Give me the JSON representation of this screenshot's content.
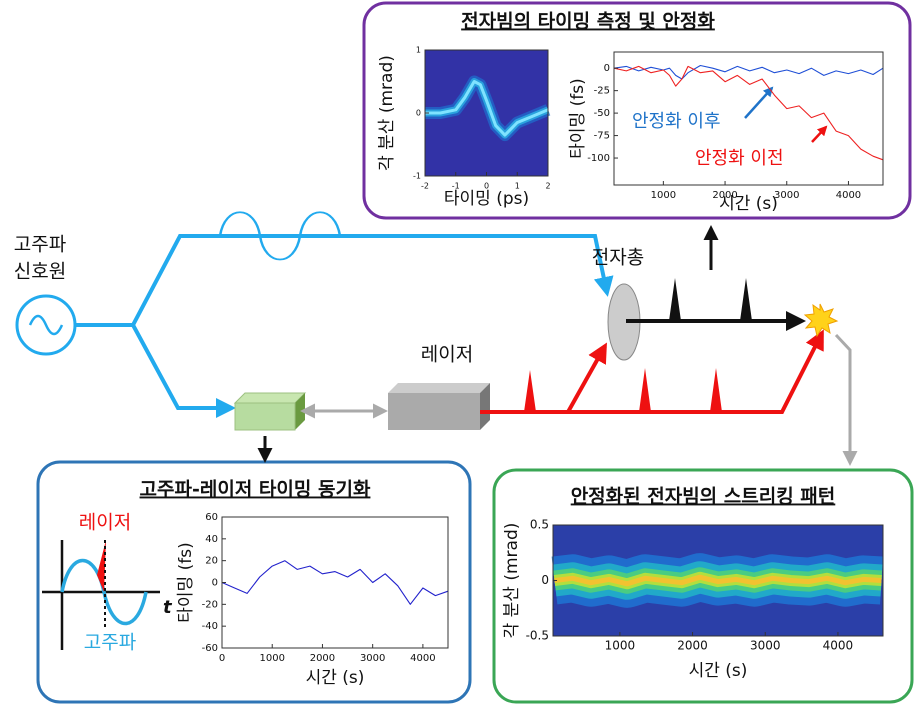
{
  "top_panel": {
    "title": "전자빔의 타이밍 측정 및 안정화",
    "left_chart": {
      "type": "heatmap",
      "xlabel": "타이밍 (ps)",
      "ylabel": "각 분산 (mrad)",
      "background": "#3232a6",
      "xlim": [
        -2,
        2
      ],
      "ylim": [
        -1,
        1
      ],
      "xticks": [
        -2,
        -1,
        0,
        1,
        2
      ],
      "yticks": [
        -1,
        0,
        1
      ],
      "x": [
        -2,
        -1.5,
        -1,
        -0.7,
        -0.4,
        -0.2,
        0,
        0.3,
        0.6,
        1,
        1.5,
        2
      ],
      "series": [
        {
          "color": "#7fe3ff",
          "values": [
            0,
            0,
            0.05,
            0.25,
            0.5,
            0.45,
            0.2,
            -0.2,
            -0.35,
            -0.15,
            -0.05,
            0.05
          ]
        }
      ]
    },
    "right_chart": {
      "type": "line",
      "xlabel": "시간 (s)",
      "ylabel": "타이밍 (fs)",
      "xlim": [
        200,
        4560
      ],
      "ylim": [
        -130,
        18
      ],
      "xticks": [
        1000,
        2000,
        3000,
        4000
      ],
      "yticks": [
        0,
        -25,
        -50,
        -75,
        -100
      ],
      "x": [
        200,
        400,
        600,
        800,
        1000,
        1100,
        1200,
        1300,
        1400,
        1600,
        1800,
        2000,
        2200,
        2400,
        2600,
        2800,
        3000,
        3200,
        3400,
        3600,
        3800,
        4000,
        4200,
        4400,
        4560
      ],
      "series": [
        {
          "name": "안정화 이후",
          "color": "#1f4fd6",
          "values": [
            0,
            2,
            -3,
            1,
            -2,
            0,
            -8,
            -12,
            -5,
            3,
            0,
            -4,
            2,
            -3,
            1,
            -5,
            -2,
            -6,
            0,
            -8,
            -3,
            -6,
            -2,
            -7,
            0
          ]
        },
        {
          "name": "안정화 이전",
          "color": "#ee2222",
          "values": [
            0,
            -3,
            2,
            -5,
            -2,
            -8,
            -20,
            -12,
            2,
            -5,
            -3,
            -15,
            -8,
            -18,
            -12,
            -30,
            -45,
            -42,
            -55,
            -50,
            -70,
            -75,
            -90,
            -98,
            -102
          ]
        }
      ]
    }
  },
  "diagram": {
    "rf_source": [
      "고주파",
      "신호원"
    ],
    "electron_gun": "전자총",
    "laser": "레이저"
  },
  "bottom_left_panel": {
    "title": "고주파-레이저 타이밍 동기화",
    "inset": {
      "laser": "레이저",
      "rf": "고주파",
      "t_axis": "t"
    },
    "chart": {
      "type": "line",
      "xlabel": "시간 (s)",
      "ylabel": "타이밍 (fs)",
      "xlim": [
        0,
        4500
      ],
      "ylim": [
        -60,
        60
      ],
      "xticks": [
        0,
        1000,
        2000,
        3000,
        4000
      ],
      "yticks": [
        60,
        40,
        20,
        0,
        -20,
        -40,
        -60
      ],
      "x": [
        0,
        250,
        500,
        750,
        1000,
        1250,
        1500,
        1750,
        2000,
        2250,
        2500,
        2750,
        3000,
        3250,
        3500,
        3750,
        4000,
        4250,
        4500
      ],
      "series": [
        {
          "color": "#2222cc",
          "values": [
            0,
            -5,
            -10,
            5,
            15,
            20,
            12,
            15,
            8,
            10,
            5,
            12,
            0,
            8,
            -3,
            -20,
            -5,
            -12,
            -8
          ]
        }
      ]
    }
  },
  "bottom_right_panel": {
    "title": "안정화된 전자빔의 스트리킹 패턴",
    "chart": {
      "type": "heatmap",
      "xlabel": "시간 (s)",
      "ylabel": "각 분산 (mrad)",
      "background": "#2b3fa8",
      "xlim": [
        80,
        4620
      ],
      "ylim": [
        -0.5,
        0.5
      ],
      "xticks": [
        1000,
        2000,
        3000,
        4000
      ],
      "yticks": [
        0.5,
        0,
        -0.5
      ],
      "x": [
        100,
        350,
        600,
        850,
        1100,
        1350,
        1600,
        1850,
        2100,
        2350,
        2600,
        2850,
        3100,
        3350,
        3600,
        3850,
        4100,
        4350,
        4600
      ],
      "series": [
        {
          "color": "#f2c230",
          "values": [
            0,
            0.02,
            -0.02,
            0.01,
            -0.03,
            0.02,
            0,
            -0.02,
            0.03,
            -0.01,
            0.01,
            -0.02,
            0.02,
            0,
            -0.01,
            0.02,
            -0.02,
            0.01,
            0
          ]
        }
      ]
    }
  }
}
